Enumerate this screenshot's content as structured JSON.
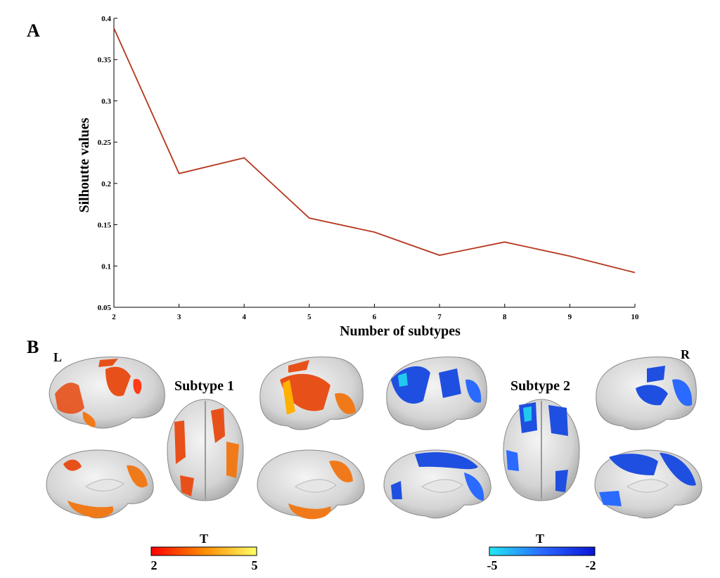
{
  "panel_a_label": "A",
  "panel_b_label": "B",
  "chart_data": {
    "type": "line",
    "x": [
      2,
      3,
      4,
      5,
      6,
      7,
      8,
      9,
      10
    ],
    "series": [
      {
        "values": [
          0.388,
          0.212,
          0.231,
          0.158,
          0.141,
          0.113,
          0.129,
          0.112,
          0.092
        ],
        "color": "#b5361d"
      }
    ],
    "xlabel": "Number of subtypes",
    "ylabel": "Silhoutte values",
    "xlim": [
      2,
      10
    ],
    "ylim": [
      0.05,
      0.4
    ],
    "xticks": [
      "2",
      "3",
      "4",
      "5",
      "6",
      "7",
      "8",
      "9",
      "10"
    ],
    "yticks": [
      "0.05",
      "0.1",
      "0.15",
      "0.2",
      "0.25",
      "0.3",
      "0.35",
      "0.4"
    ],
    "grid": false
  },
  "brain_panel": {
    "left_hemisphere_label": "L",
    "right_hemisphere_label": "R",
    "subtype1": {
      "label": "Subtype 1",
      "colorbar": {
        "title": "T",
        "min_label": "2",
        "max_label": "5",
        "colors": [
          "#ff0000",
          "#ff8c00",
          "#ffff66"
        ]
      },
      "blob_color": "#e8501a"
    },
    "subtype2": {
      "label": "Subtype 2",
      "colorbar": {
        "title": "T",
        "min_label": "-5",
        "max_label": "-2",
        "colors": [
          "#22e8f0",
          "#2a6aff",
          "#0a14d8"
        ]
      },
      "blob_color": "#1f4fe0"
    }
  }
}
